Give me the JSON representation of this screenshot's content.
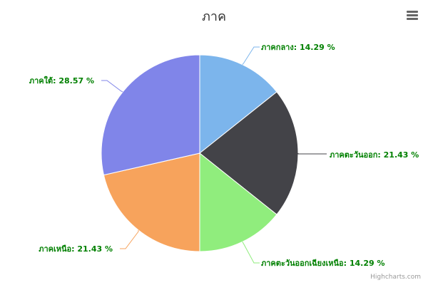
{
  "chart_data": {
    "type": "pie",
    "title": "ภาค",
    "label_suffix": " %",
    "slices": [
      {
        "name": "ภาคกลาง",
        "value": 14.29,
        "label": "14.29",
        "color": "#7cb5ec"
      },
      {
        "name": "ภาคตะวันออก",
        "value": 21.43,
        "label": "21.43",
        "color": "#434348"
      },
      {
        "name": "ภาคตะวันออกเฉียงเหนือ",
        "value": 14.29,
        "label": "14.29",
        "color": "#90ed7d"
      },
      {
        "name": "ภาคเหนือ",
        "value": 21.43,
        "label": "21.43",
        "color": "#f7a35c"
      },
      {
        "name": "ภาคใต้",
        "value": 28.57,
        "label": "28.57",
        "color": "#8085e9"
      }
    ],
    "label_color": "#008000"
  },
  "toolbar": {
    "menu_icon": "hamburger-menu-icon"
  },
  "credits": {
    "text": "Highcharts.com"
  }
}
